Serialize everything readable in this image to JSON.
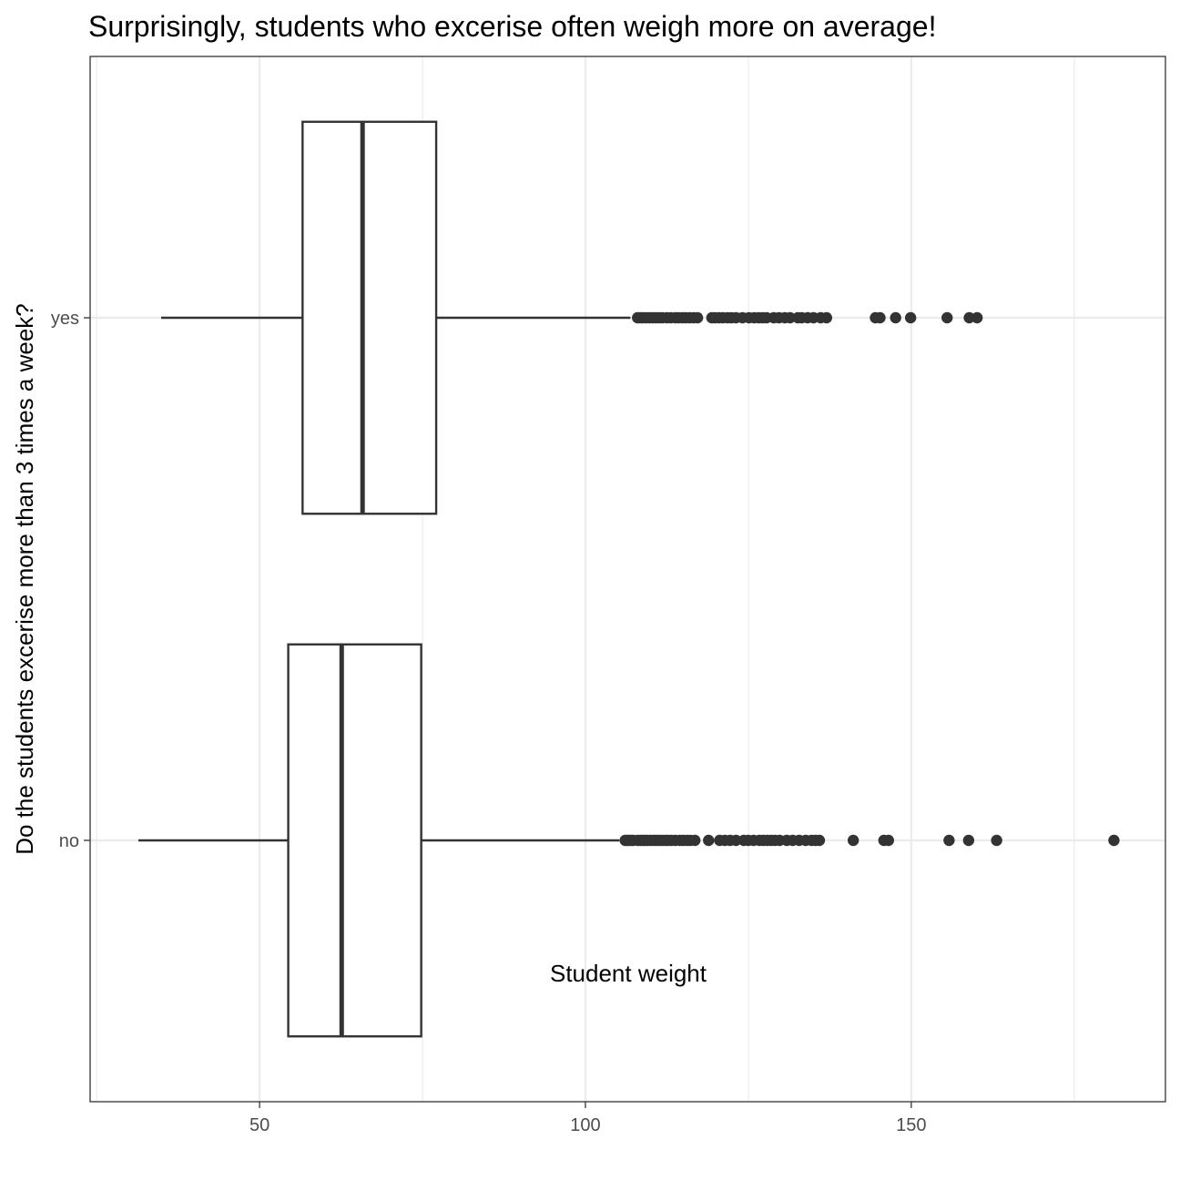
{
  "chart_data": {
    "type": "boxplot",
    "orientation": "horizontal",
    "title": "Surprisingly, students who excerise often weigh more on average!",
    "xlabel": "Student weight",
    "ylabel": "Do the students excerise more than 3 times a week?",
    "xlim": [
      24,
      189
    ],
    "x_ticks": [
      50,
      100,
      150
    ],
    "grid": true,
    "categories": [
      "no",
      "yes"
    ],
    "series": [
      {
        "category": "no",
        "whisker_low": 31.4,
        "q1": 54.4,
        "median": 62.6,
        "q3": 74.8,
        "whisker_high": 105.2,
        "outliers": [
          106.1,
          106.4,
          106.6,
          107.0,
          107.3,
          108.0,
          108.4,
          108.8,
          109.1,
          109.5,
          110.0,
          110.5,
          110.9,
          111.3,
          111.8,
          112.3,
          112.7,
          113.2,
          113.8,
          114.5,
          115.0,
          115.6,
          116.1,
          116.8,
          118.9,
          120.6,
          121.4,
          122.2,
          123.1,
          124.3,
          125.0,
          125.8,
          126.7,
          127.3,
          127.9,
          128.5,
          129.1,
          129.8,
          130.9,
          131.8,
          132.8,
          133.8,
          134.7,
          135.3,
          135.9,
          141.1,
          145.8,
          146.5,
          155.8,
          158.8,
          163.1,
          181.1
        ]
      },
      {
        "category": "yes",
        "whisker_low": 34.9,
        "q1": 56.6,
        "median": 65.8,
        "q3": 77.1,
        "whisker_high": 106.9,
        "outliers": [
          108.0,
          108.4,
          108.8,
          109.3,
          109.8,
          110.3,
          110.8,
          111.3,
          111.8,
          112.5,
          113.1,
          113.8,
          114.3,
          114.9,
          115.4,
          116.0,
          116.6,
          117.2,
          119.4,
          119.9,
          120.5,
          121.1,
          121.8,
          122.4,
          123.1,
          124.1,
          125.1,
          125.9,
          126.6,
          127.2,
          127.8,
          128.9,
          129.7,
          130.6,
          131.4,
          132.6,
          133.2,
          134.1,
          135.0,
          136.1,
          137.0,
          144.5,
          145.2,
          147.6,
          149.9,
          155.5,
          158.9,
          160.1
        ]
      }
    ]
  }
}
